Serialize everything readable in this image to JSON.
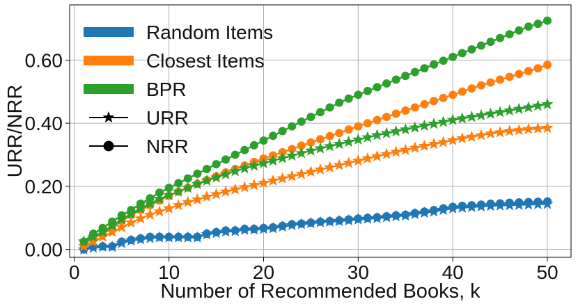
{
  "chart_data": {
    "type": "line",
    "xlabel": "Number of Recommended Books, k",
    "ylabel": "URR/NRR",
    "xlim": [
      -0.5,
      52.5
    ],
    "ylim": [
      -0.025,
      0.775
    ],
    "xticks": [
      0,
      10,
      20,
      30,
      40,
      50
    ],
    "yticks": [
      0.0,
      0.2,
      0.4,
      0.6
    ],
    "ytick_labels": [
      "0.00",
      "0.20",
      "0.40",
      "0.60"
    ],
    "grid": true,
    "legend_position": "upper-left",
    "legend": [
      {
        "label": "Random Items",
        "kind": "color",
        "color": "#1f77b4"
      },
      {
        "label": "Closest Items",
        "kind": "color",
        "color": "#ff7f0e"
      },
      {
        "label": "BPR",
        "kind": "color",
        "color": "#2ca02c"
      },
      {
        "label": "URR",
        "kind": "marker",
        "marker": "star"
      },
      {
        "label": "NRR",
        "kind": "marker",
        "marker": "circle"
      }
    ],
    "x": [
      1,
      2,
      3,
      4,
      5,
      6,
      7,
      8,
      9,
      10,
      11,
      12,
      13,
      14,
      15,
      16,
      17,
      18,
      19,
      20,
      21,
      22,
      23,
      24,
      25,
      26,
      27,
      28,
      29,
      30,
      31,
      32,
      33,
      34,
      35,
      36,
      37,
      38,
      39,
      40,
      41,
      42,
      43,
      44,
      45,
      46,
      47,
      48,
      49,
      50
    ],
    "series": [
      {
        "method": "Random Items",
        "metric": "NRR",
        "color": "#1f77b4",
        "marker": "circle",
        "values": [
          0.0,
          0.01,
          0.01,
          0.01,
          0.025,
          0.03,
          0.035,
          0.04,
          0.04,
          0.04,
          0.04,
          0.04,
          0.04,
          0.05,
          0.055,
          0.06,
          0.06,
          0.065,
          0.065,
          0.068,
          0.07,
          0.075,
          0.08,
          0.082,
          0.085,
          0.088,
          0.09,
          0.092,
          0.095,
          0.098,
          0.1,
          0.102,
          0.105,
          0.108,
          0.11,
          0.115,
          0.12,
          0.125,
          0.13,
          0.135,
          0.138,
          0.14,
          0.142,
          0.145,
          0.146,
          0.148,
          0.149,
          0.15,
          0.151,
          0.152
        ]
      },
      {
        "method": "Random Items",
        "metric": "URR",
        "color": "#1f77b4",
        "marker": "star",
        "values": [
          0.0,
          0.005,
          0.008,
          0.008,
          0.02,
          0.028,
          0.032,
          0.036,
          0.038,
          0.038,
          0.038,
          0.038,
          0.038,
          0.048,
          0.052,
          0.056,
          0.058,
          0.062,
          0.063,
          0.065,
          0.067,
          0.072,
          0.077,
          0.08,
          0.083,
          0.086,
          0.088,
          0.09,
          0.092,
          0.095,
          0.097,
          0.099,
          0.102,
          0.105,
          0.107,
          0.112,
          0.116,
          0.12,
          0.125,
          0.13,
          0.132,
          0.134,
          0.136,
          0.138,
          0.139,
          0.14,
          0.141,
          0.142,
          0.143,
          0.144
        ]
      },
      {
        "method": "Closest Items",
        "metric": "NRR",
        "color": "#ff7f0e",
        "marker": "circle",
        "values": [
          0.015,
          0.035,
          0.05,
          0.068,
          0.09,
          0.11,
          0.125,
          0.14,
          0.155,
          0.17,
          0.183,
          0.196,
          0.208,
          0.22,
          0.232,
          0.244,
          0.255,
          0.266,
          0.277,
          0.288,
          0.298,
          0.308,
          0.318,
          0.329,
          0.339,
          0.349,
          0.359,
          0.369,
          0.38,
          0.39,
          0.4,
          0.41,
          0.42,
          0.43,
          0.44,
          0.45,
          0.46,
          0.47,
          0.48,
          0.49,
          0.5,
          0.51,
          0.52,
          0.529,
          0.538,
          0.547,
          0.556,
          0.565,
          0.574,
          0.585
        ]
      },
      {
        "method": "Closest Items",
        "metric": "URR",
        "color": "#ff7f0e",
        "marker": "star",
        "values": [
          0.01,
          0.025,
          0.04,
          0.055,
          0.07,
          0.085,
          0.098,
          0.11,
          0.12,
          0.13,
          0.14,
          0.15,
          0.158,
          0.167,
          0.175,
          0.183,
          0.19,
          0.197,
          0.204,
          0.211,
          0.218,
          0.225,
          0.232,
          0.239,
          0.246,
          0.253,
          0.26,
          0.267,
          0.274,
          0.281,
          0.288,
          0.295,
          0.302,
          0.309,
          0.315,
          0.322,
          0.328,
          0.334,
          0.34,
          0.346,
          0.352,
          0.357,
          0.362,
          0.367,
          0.371,
          0.375,
          0.378,
          0.381,
          0.383,
          0.385
        ]
      },
      {
        "method": "BPR",
        "metric": "NRR",
        "color": "#2ca02c",
        "marker": "circle",
        "values": [
          0.025,
          0.05,
          0.068,
          0.088,
          0.108,
          0.125,
          0.145,
          0.162,
          0.18,
          0.195,
          0.21,
          0.225,
          0.24,
          0.255,
          0.27,
          0.285,
          0.3,
          0.315,
          0.33,
          0.345,
          0.36,
          0.375,
          0.39,
          0.405,
          0.42,
          0.435,
          0.45,
          0.465,
          0.478,
          0.49,
          0.502,
          0.514,
          0.526,
          0.538,
          0.55,
          0.562,
          0.574,
          0.586,
          0.598,
          0.61,
          0.622,
          0.634,
          0.646,
          0.658,
          0.67,
          0.682,
          0.694,
          0.706,
          0.715,
          0.725
        ]
      },
      {
        "method": "BPR",
        "metric": "URR",
        "color": "#2ca02c",
        "marker": "star",
        "values": [
          0.025,
          0.04,
          0.055,
          0.075,
          0.095,
          0.112,
          0.13,
          0.145,
          0.16,
          0.172,
          0.183,
          0.195,
          0.207,
          0.218,
          0.228,
          0.238,
          0.248,
          0.257,
          0.265,
          0.273,
          0.281,
          0.289,
          0.297,
          0.305,
          0.313,
          0.32,
          0.327,
          0.334,
          0.341,
          0.348,
          0.355,
          0.362,
          0.368,
          0.374,
          0.38,
          0.386,
          0.392,
          0.398,
          0.404,
          0.41,
          0.415,
          0.42,
          0.425,
          0.43,
          0.435,
          0.44,
          0.445,
          0.45,
          0.455,
          0.46
        ]
      }
    ]
  }
}
